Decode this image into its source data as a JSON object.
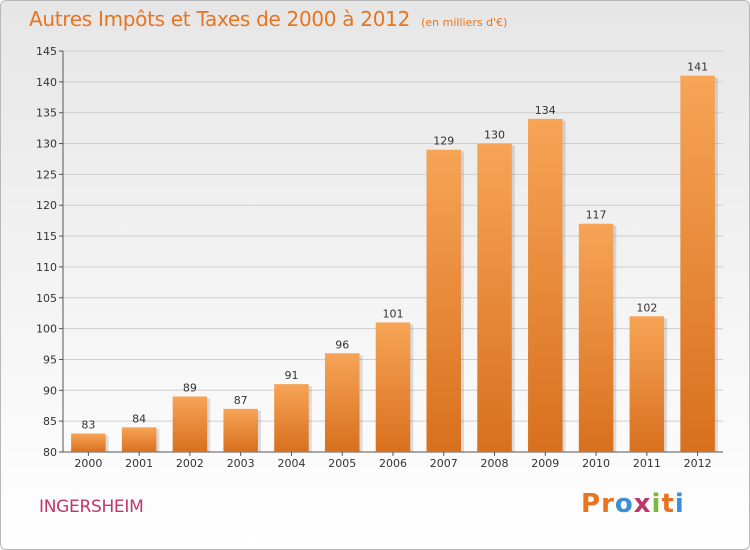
{
  "header": {
    "title": "Autres Impôts et Taxes de 2000 à 2012",
    "subtitle": "(en milliers d'€)"
  },
  "footer": {
    "commune": "INGERSHEIM",
    "logo_letters": [
      "P",
      "r",
      "o",
      "x",
      "i",
      "t",
      "i"
    ]
  },
  "colors": {
    "bar_top": "#f7a456",
    "bar_bottom": "#d8701e",
    "title": "#e8741f",
    "commune": "#c0356a",
    "logo": [
      "#e8741f",
      "#e8741f",
      "#3b8fd4",
      "#c0356a",
      "#7ab640",
      "#e8741f",
      "#3b8fd4"
    ]
  },
  "chart_data": {
    "type": "bar",
    "title": "Autres Impôts et Taxes de 2000 à 2012",
    "subtitle": "(en milliers d'€)",
    "categories": [
      "2000",
      "2001",
      "2002",
      "2003",
      "2004",
      "2005",
      "2006",
      "2007",
      "2008",
      "2009",
      "2010",
      "2011",
      "2012"
    ],
    "values": [
      83,
      84,
      89,
      87,
      91,
      96,
      101,
      129,
      130,
      134,
      117,
      102,
      141
    ],
    "ylim": [
      80,
      145
    ],
    "yticks": [
      80,
      85,
      90,
      95,
      100,
      105,
      110,
      115,
      120,
      125,
      130,
      135,
      140,
      145
    ],
    "grid": "horizontal",
    "xlabel": "",
    "ylabel": ""
  }
}
